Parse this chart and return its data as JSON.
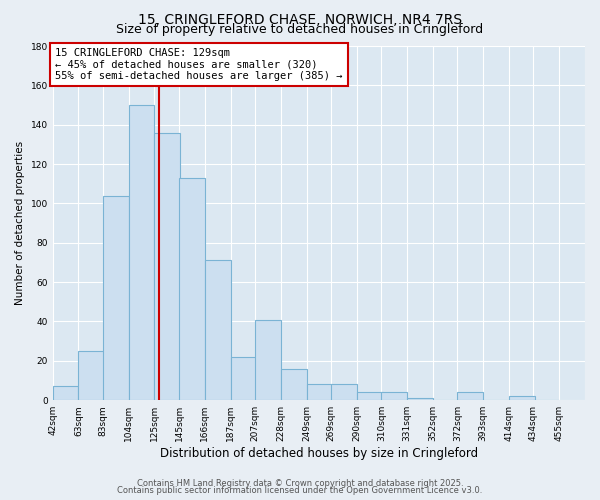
{
  "title": "15, CRINGLEFORD CHASE, NORWICH, NR4 7RS",
  "subtitle": "Size of property relative to detached houses in Cringleford",
  "xlabel": "Distribution of detached houses by size in Cringleford",
  "ylabel": "Number of detached properties",
  "bin_labels": [
    "42sqm",
    "63sqm",
    "83sqm",
    "104sqm",
    "125sqm",
    "145sqm",
    "166sqm",
    "187sqm",
    "207sqm",
    "228sqm",
    "249sqm",
    "269sqm",
    "290sqm",
    "310sqm",
    "331sqm",
    "352sqm",
    "372sqm",
    "393sqm",
    "414sqm",
    "434sqm",
    "455sqm"
  ],
  "bar_values": [
    7,
    25,
    104,
    150,
    136,
    113,
    71,
    22,
    41,
    16,
    8,
    8,
    4,
    4,
    1,
    0,
    4,
    0,
    2,
    0
  ],
  "bar_color": "#ccdff0",
  "bar_edge_color": "#7ab3d4",
  "vline_x": 129,
  "vline_color": "#cc0000",
  "bin_edges": [
    42,
    63,
    83,
    104,
    125,
    145,
    166,
    187,
    207,
    228,
    249,
    269,
    290,
    310,
    331,
    352,
    372,
    393,
    414,
    434,
    455
  ],
  "ylim": [
    0,
    180
  ],
  "yticks": [
    0,
    20,
    40,
    60,
    80,
    100,
    120,
    140,
    160,
    180
  ],
  "annotation_text": "15 CRINGLEFORD CHASE: 129sqm\n← 45% of detached houses are smaller (320)\n55% of semi-detached houses are larger (385) →",
  "annotation_box_color": "#ffffff",
  "annotation_box_edge": "#cc0000",
  "footer1": "Contains HM Land Registry data © Crown copyright and database right 2025.",
  "footer2": "Contains public sector information licensed under the Open Government Licence v3.0.",
  "background_color": "#e8eef4",
  "plot_bg_color": "#dce8f2",
  "grid_color": "#ffffff",
  "title_fontsize": 10,
  "subtitle_fontsize": 9,
  "xlabel_fontsize": 8.5,
  "ylabel_fontsize": 7.5,
  "tick_fontsize": 6.5,
  "annotation_fontsize": 7.5,
  "footer_fontsize": 6
}
